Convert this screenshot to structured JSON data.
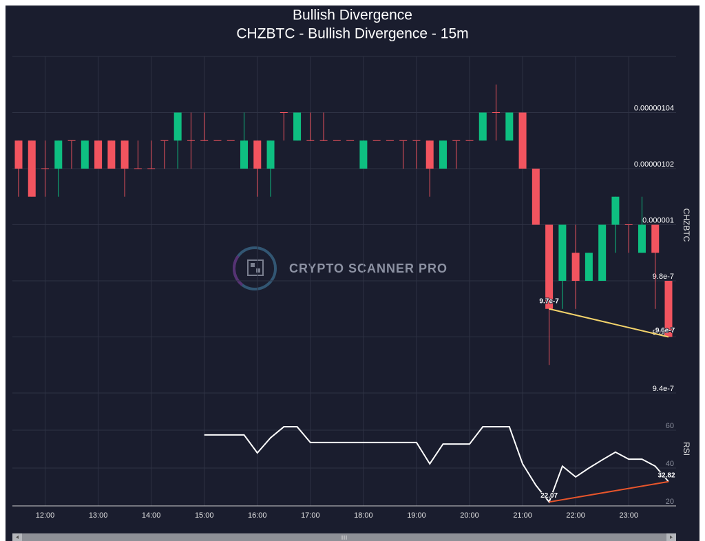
{
  "chart_data": {
    "type": "candlestick",
    "title": "Bullish Divergence",
    "subtitle": "CHZBTC - Bullish Divergence - 15m",
    "y_label": "CHZBTC",
    "watermark": "CRYPTO SCANNER PRO",
    "up_color": "#0ebf81",
    "down_color": "#f2545f",
    "grid": true,
    "categories": [
      null,
      null,
      "12:00",
      null,
      null,
      null,
      "13:00",
      null,
      null,
      null,
      "14:00",
      null,
      null,
      null,
      "15:00",
      null,
      null,
      null,
      "16:00",
      null,
      null,
      null,
      "17:00",
      null,
      null,
      null,
      "18:00",
      null,
      null,
      null,
      "19:00",
      null,
      null,
      null,
      "20:00",
      null,
      null,
      null,
      "21:00",
      null,
      null,
      null,
      "22:00",
      null,
      null,
      null,
      "23:00",
      null,
      null,
      null
    ],
    "open": [
      1.03e-06,
      1.03e-06,
      1.02e-06,
      1.02e-06,
      1.03e-06,
      1.02e-06,
      1.03e-06,
      1.03e-06,
      1.03e-06,
      1.02e-06,
      1.02e-06,
      1.03e-06,
      1.03e-06,
      1.03e-06,
      1.03e-06,
      1.03e-06,
      1.03e-06,
      1.02e-06,
      1.03e-06,
      1.02e-06,
      1.04e-06,
      1.03e-06,
      1.03e-06,
      1.03e-06,
      1.03e-06,
      1.03e-06,
      1.02e-06,
      1.03e-06,
      1.03e-06,
      1.03e-06,
      1.03e-06,
      1.03e-06,
      1.02e-06,
      1.03e-06,
      1.03e-06,
      1.03e-06,
      1.04e-06,
      1.03e-06,
      1.04e-06,
      1.02e-06,
      1e-06,
      9.8e-07,
      9.9e-07,
      9.8e-07,
      9.8e-07,
      1e-06,
      1e-06,
      9.9e-07,
      1e-06,
      9.8e-07
    ],
    "high": [
      1.03e-06,
      1.03e-06,
      1.03e-06,
      1.03e-06,
      1.03e-06,
      1.03e-06,
      1.03e-06,
      1.03e-06,
      1.03e-06,
      1.03e-06,
      1.03e-06,
      1.03e-06,
      1.04e-06,
      1.04e-06,
      1.04e-06,
      1.03e-06,
      1.03e-06,
      1.04e-06,
      1.03e-06,
      1.03e-06,
      1.04e-06,
      1.04e-06,
      1.04e-06,
      1.04e-06,
      1.03e-06,
      1.03e-06,
      1.03e-06,
      1.03e-06,
      1.03e-06,
      1.03e-06,
      1.03e-06,
      1.03e-06,
      1.03e-06,
      1.03e-06,
      1.03e-06,
      1.04e-06,
      1.05e-06,
      1.04e-06,
      1.04e-06,
      1.02e-06,
      1e-06,
      1e-06,
      1e-06,
      9.9e-07,
      1e-06,
      1.01e-06,
      1e-06,
      1.01e-06,
      1e-06,
      9.8e-07
    ],
    "low": [
      1.01e-06,
      1.01e-06,
      1.01e-06,
      1.01e-06,
      1.02e-06,
      1.02e-06,
      1.02e-06,
      1.02e-06,
      1.01e-06,
      1.02e-06,
      1.02e-06,
      1.02e-06,
      1.02e-06,
      1.02e-06,
      1.03e-06,
      1.03e-06,
      1.03e-06,
      1.02e-06,
      1.01e-06,
      1.01e-06,
      1.03e-06,
      1.03e-06,
      1.03e-06,
      1.03e-06,
      1.03e-06,
      1.03e-06,
      1.02e-06,
      1.03e-06,
      1.03e-06,
      1.02e-06,
      1.02e-06,
      1.01e-06,
      1.02e-06,
      1.02e-06,
      1.03e-06,
      1.03e-06,
      1.03e-06,
      1.03e-06,
      1.02e-06,
      1e-06,
      9.5e-07,
      9.7e-07,
      9.7e-07,
      9.8e-07,
      9.8e-07,
      9.9e-07,
      9.9e-07,
      9.9e-07,
      9.7e-07,
      9.6e-07
    ],
    "close": [
      1.02e-06,
      1.01e-06,
      1.02e-06,
      1.03e-06,
      1.03e-06,
      1.03e-06,
      1.02e-06,
      1.02e-06,
      1.02e-06,
      1.02e-06,
      1.02e-06,
      1.03e-06,
      1.04e-06,
      1.03e-06,
      1.03e-06,
      1.03e-06,
      1.03e-06,
      1.03e-06,
      1.02e-06,
      1.03e-06,
      1.04e-06,
      1.04e-06,
      1.03e-06,
      1.03e-06,
      1.03e-06,
      1.03e-06,
      1.03e-06,
      1.03e-06,
      1.03e-06,
      1.03e-06,
      1.03e-06,
      1.02e-06,
      1.03e-06,
      1.03e-06,
      1.03e-06,
      1.04e-06,
      1.04e-06,
      1.04e-06,
      1.02e-06,
      1e-06,
      9.7e-07,
      1e-06,
      9.8e-07,
      9.9e-07,
      1e-06,
      1.01e-06,
      1e-06,
      1e-06,
      9.9e-07,
      9.6e-07
    ],
    "ylim": [
      9.4e-07,
      1.06e-06
    ],
    "yticks": [
      9.4e-07,
      9.6e-07,
      9.8e-07,
      1e-06,
      1.02e-06,
      1.04e-06
    ],
    "divergence": {
      "color": "#f3d36b",
      "values": [
        null,
        null,
        null,
        null,
        null,
        null,
        null,
        null,
        null,
        null,
        null,
        null,
        null,
        null,
        null,
        null,
        null,
        null,
        null,
        null,
        null,
        null,
        null,
        null,
        null,
        null,
        null,
        null,
        null,
        null,
        null,
        null,
        null,
        null,
        null,
        null,
        null,
        null,
        null,
        null,
        9.7e-07,
        null,
        null,
        null,
        null,
        null,
        null,
        null,
        null,
        9.6e-07
      ]
    },
    "indicator": {
      "type": "line",
      "y_label": "RSI",
      "color": "#ffffff",
      "values": [
        null,
        null,
        null,
        null,
        null,
        null,
        null,
        null,
        null,
        null,
        null,
        null,
        null,
        null,
        57.5,
        57.5,
        57.5,
        57.5,
        48,
        56,
        61.8,
        61.8,
        53.5,
        53.5,
        53.5,
        53.5,
        53.5,
        53.5,
        53.5,
        53.5,
        53.5,
        42.2,
        52.7,
        52.7,
        52.7,
        61.8,
        61.8,
        61.8,
        42.2,
        30.9,
        22.07,
        41,
        35.3,
        40,
        44.3,
        48.4,
        44.7,
        44.7,
        41,
        32.82
      ],
      "ylim": [
        20,
        80
      ],
      "yticks": [
        20,
        40,
        60
      ],
      "divergence": {
        "color": "#e8552b",
        "values": [
          null,
          null,
          null,
          null,
          null,
          null,
          null,
          null,
          null,
          null,
          null,
          null,
          null,
          null,
          null,
          null,
          null,
          null,
          null,
          null,
          null,
          null,
          null,
          null,
          null,
          null,
          null,
          null,
          null,
          null,
          null,
          null,
          null,
          null,
          null,
          null,
          null,
          null,
          null,
          null,
          22.07,
          null,
          null,
          null,
          null,
          null,
          null,
          null,
          null,
          32.82
        ]
      }
    }
  }
}
